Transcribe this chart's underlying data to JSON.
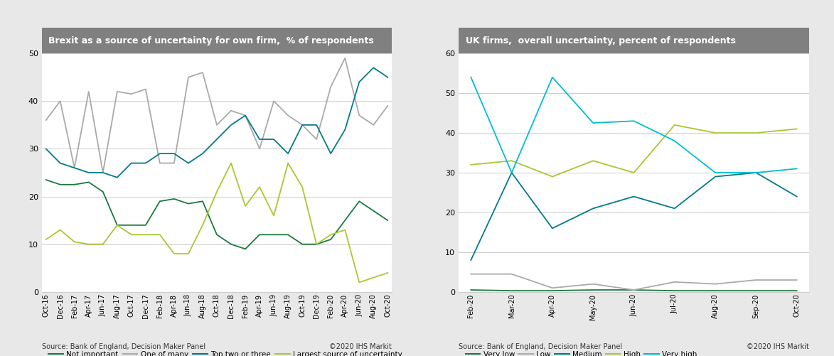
{
  "chart1": {
    "title": "Brexit as a source of uncertainty for own firm,  % of respondents",
    "xlabels": [
      "Oct-16",
      "Dec-16",
      "Feb-17",
      "Apr-17",
      "Jun-17",
      "Aug-17",
      "Oct-17",
      "Dec-17",
      "Feb-18",
      "Apr-18",
      "Jun-18",
      "Aug-18",
      "Oct-18",
      "Dec-18",
      "Feb-19",
      "Apr-19",
      "Jun-19",
      "Aug-19",
      "Oct-19",
      "Dec-19",
      "Feb-20",
      "Apr-20",
      "Jun-20",
      "Aug-20",
      "Oct-20"
    ],
    "ylim": [
      0,
      50
    ],
    "yticks": [
      0,
      10,
      20,
      30,
      40,
      50
    ],
    "series": {
      "Not important": {
        "color": "#1a7a3e",
        "data": [
          23.5,
          22.5,
          22.5,
          23,
          21,
          14,
          14,
          14,
          19,
          19.5,
          18.5,
          19,
          12,
          10,
          9,
          12,
          12,
          12,
          10,
          10,
          11,
          15,
          19,
          17,
          15
        ]
      },
      "One of many": {
        "color": "#aaaaaa",
        "data": [
          36,
          40,
          26,
          42,
          25,
          42,
          41.5,
          42.5,
          27,
          27,
          45,
          46,
          35,
          38,
          37,
          30,
          40,
          37,
          35,
          32,
          43,
          49,
          37,
          35,
          39
        ]
      },
      "Top two or three": {
        "color": "#007b8a",
        "data": [
          30,
          27,
          26,
          25,
          25,
          24,
          27,
          27,
          29,
          29,
          27,
          29,
          32,
          35,
          37,
          32,
          32,
          29,
          35,
          35,
          29,
          34,
          44,
          47,
          45
        ]
      },
      "Largest source of uncertainty": {
        "color": "#a8c832",
        "data": [
          11,
          13,
          10.5,
          10,
          10,
          14,
          12,
          12,
          12,
          8,
          8,
          14,
          21,
          27,
          18,
          22,
          16,
          27,
          22,
          10,
          12,
          13,
          2,
          3,
          4
        ]
      }
    }
  },
  "chart2": {
    "title": "UK firms,  overall uncertainty, percent of respondents",
    "xlabels": [
      "Feb-20",
      "Mar-20",
      "Apr-20",
      "May-20",
      "Jun-20",
      "Jul-20",
      "Aug-20",
      "Sep-20",
      "Oct-20"
    ],
    "ylim": [
      0,
      60
    ],
    "yticks": [
      0,
      10,
      20,
      30,
      40,
      50,
      60
    ],
    "series": {
      "Very low": {
        "color": "#1a7a3e",
        "data": [
          0.5,
          0.3,
          0.3,
          0.5,
          0.5,
          0.3,
          0.3,
          0.3,
          0.3
        ]
      },
      "Low": {
        "color": "#aaaaaa",
        "data": [
          4.5,
          4.5,
          1,
          2,
          0.5,
          2.5,
          2,
          3,
          3
        ]
      },
      "Medium": {
        "color": "#007b8a",
        "data": [
          8,
          30,
          16,
          21,
          24,
          21,
          29,
          30,
          24
        ]
      },
      "High": {
        "color": "#a8c832",
        "data": [
          32,
          33,
          29,
          33,
          30,
          42,
          40,
          40,
          41
        ]
      },
      "Very high": {
        "color": "#00bcd4",
        "data": [
          54,
          30,
          54,
          42.5,
          43,
          38,
          30,
          30,
          31
        ]
      }
    }
  },
  "source_text": "Source: Bank of England, Decision Maker Panel",
  "copyright_text": "©2020 IHS Markit",
  "bg_color": "#e8e8e8",
  "plot_bg_color": "#ffffff",
  "title_bg_color": "#808080",
  "title_text_color": "#ffffff",
  "grid_color": "#cccccc"
}
